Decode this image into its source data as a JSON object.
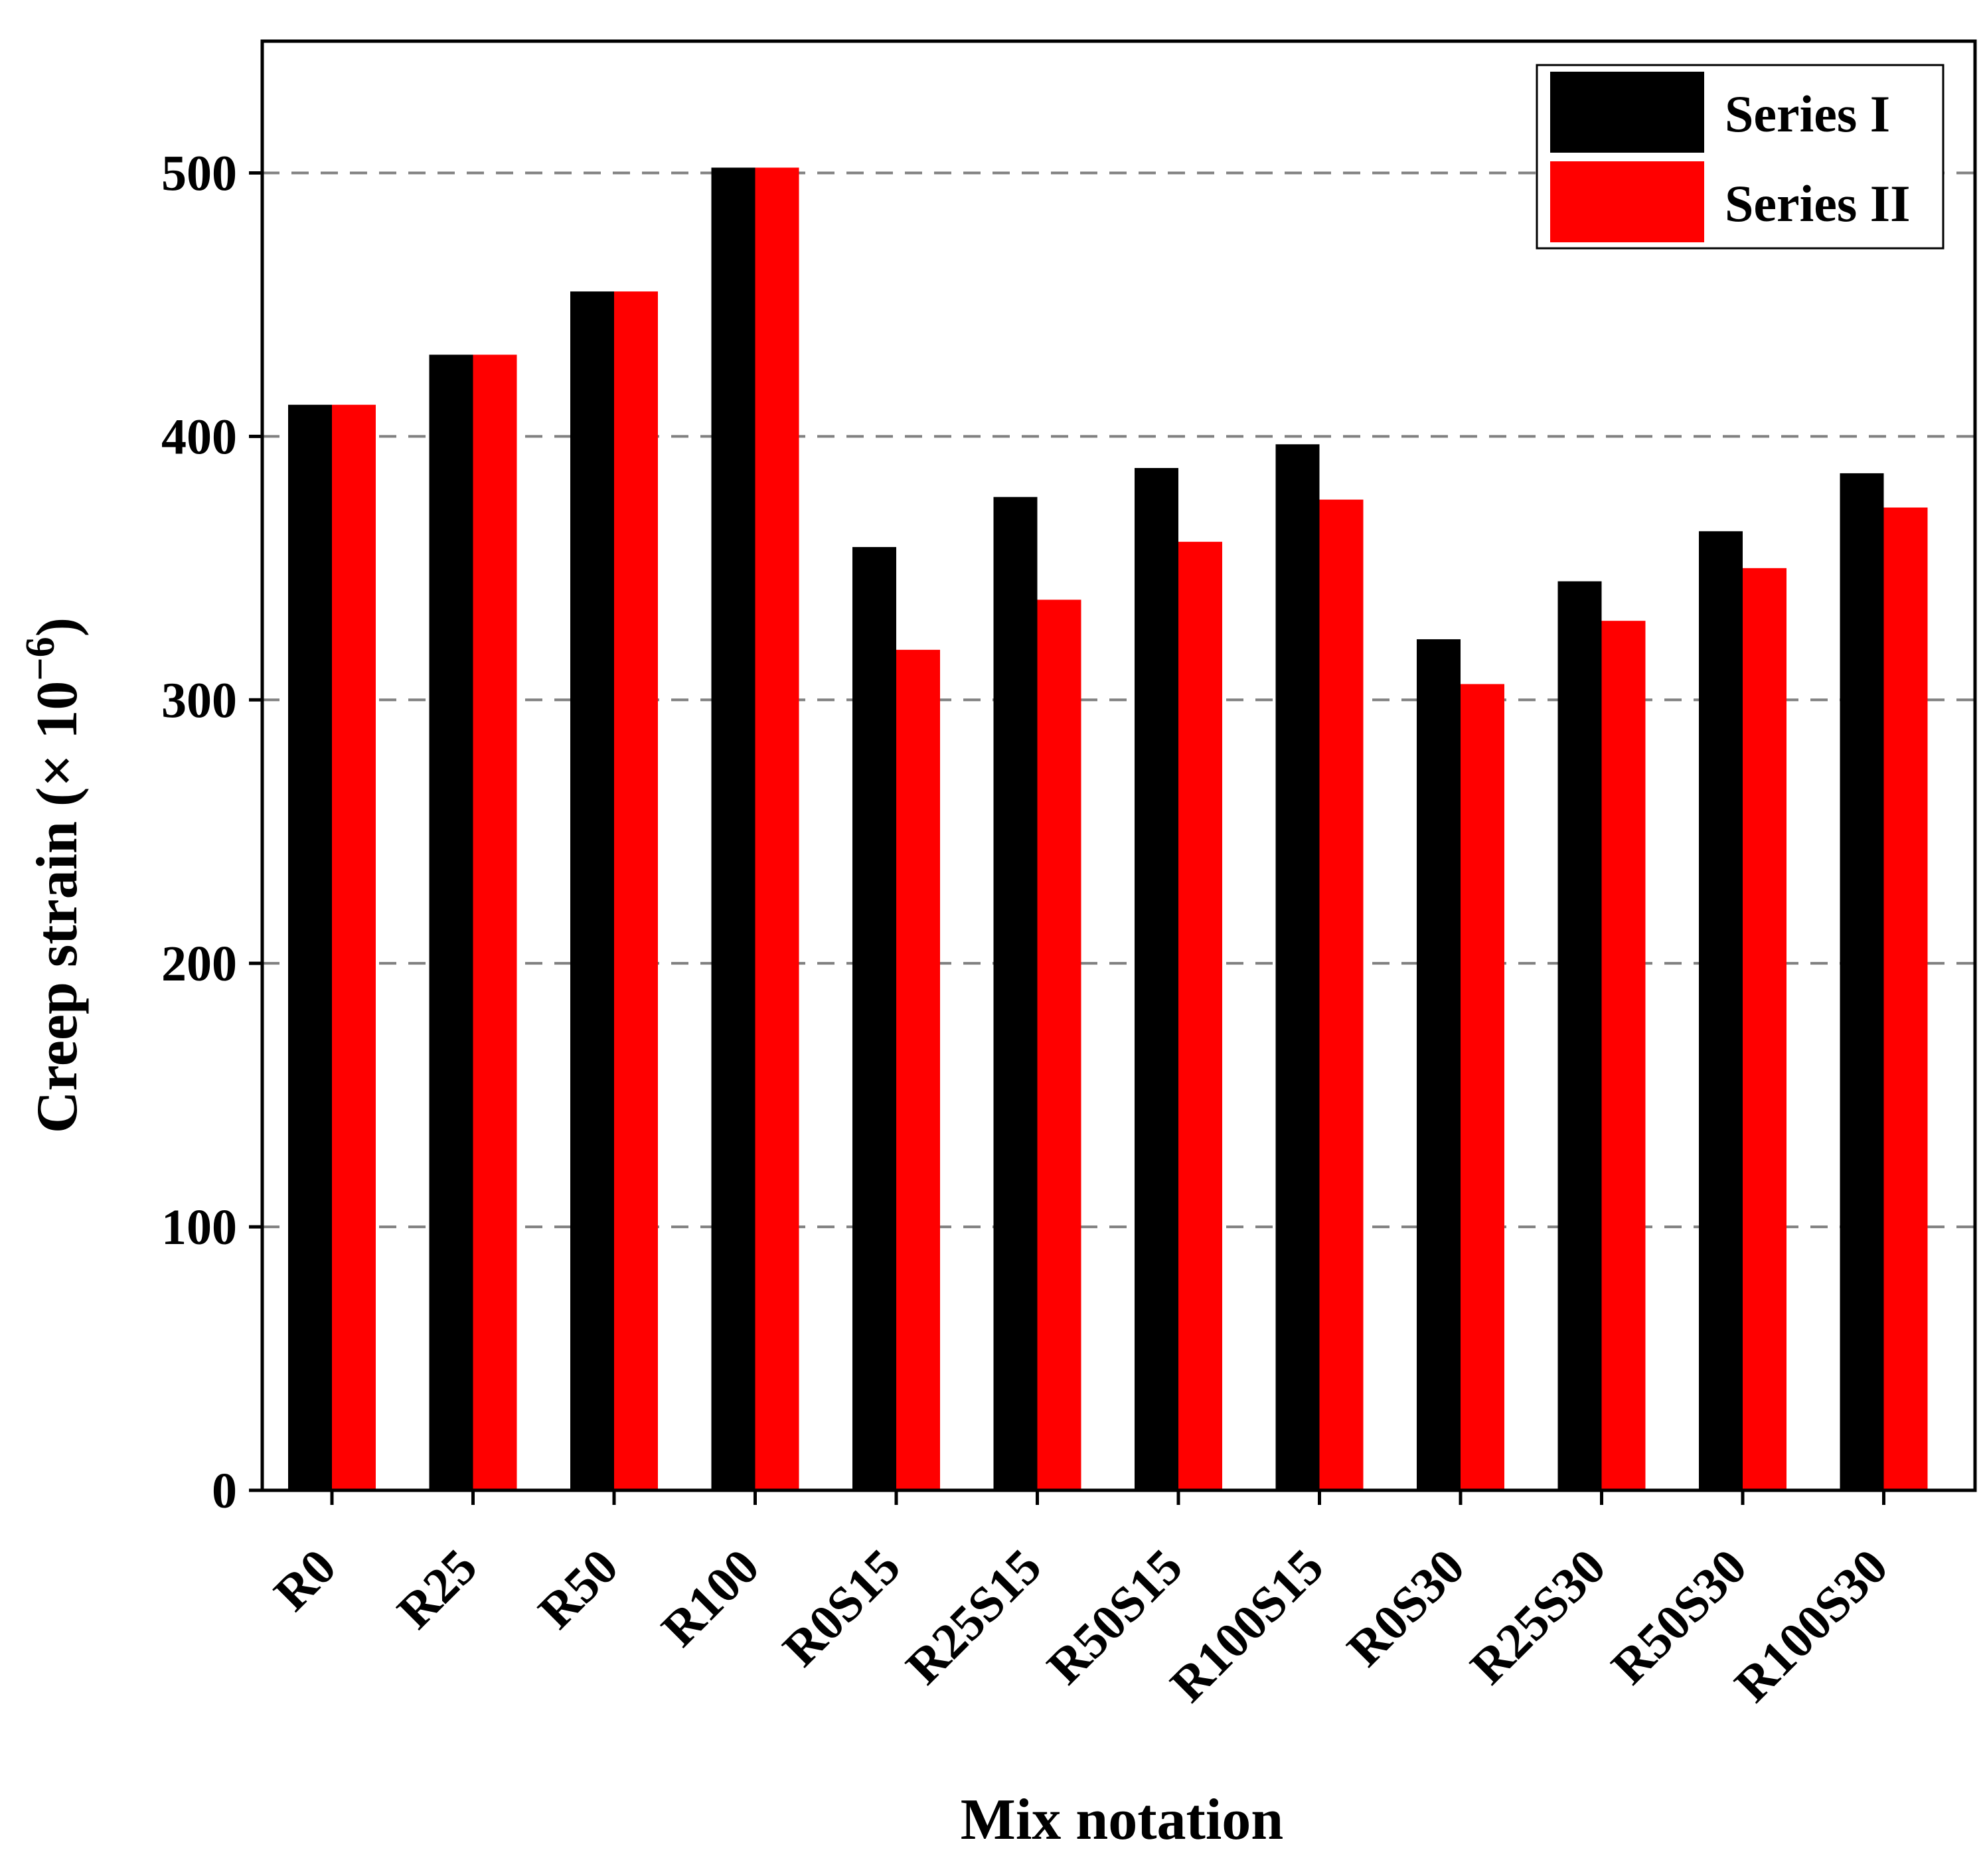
{
  "chart_data": {
    "type": "bar",
    "xlabel": "Mix notation",
    "ylabel": "Creep strain (× 10",
    "ylabel_sup": "−6",
    "ylabel_close": ")",
    "ylim": [
      0,
      550
    ],
    "yticks": [
      0,
      100,
      200,
      300,
      400,
      500
    ],
    "ytick_labels": [
      "0",
      "100",
      "200",
      "300",
      "400",
      "500"
    ],
    "grid": "dashed horizontal at major ticks",
    "legend_position": "top-right",
    "categories": [
      "R0",
      "R25",
      "R50",
      "R100",
      "R0S15",
      "R25S15",
      "R50S15",
      "R100S15",
      "R0S30",
      "R25S30",
      "R50S30",
      "R100S30"
    ],
    "series": [
      {
        "name": "Series I",
        "color": "#000000",
        "values": [
          412,
          431,
          455,
          502,
          358,
          377,
          388,
          397,
          323,
          345,
          364,
          386
        ]
      },
      {
        "name": "Series II",
        "color": "#ff0000",
        "values": [
          412,
          431,
          455,
          502,
          319,
          338,
          360,
          376,
          306,
          330,
          350,
          373
        ]
      }
    ]
  }
}
